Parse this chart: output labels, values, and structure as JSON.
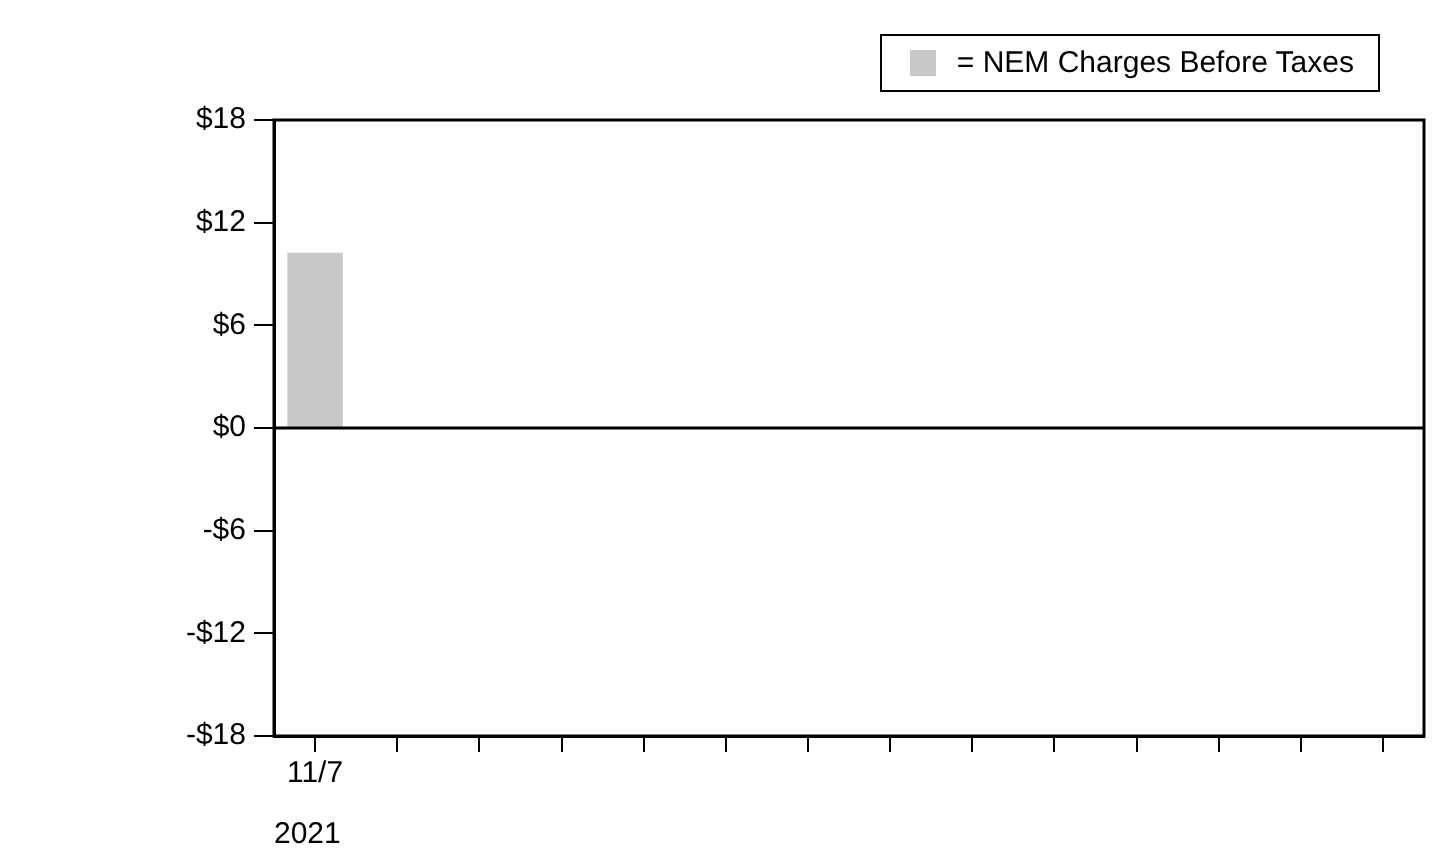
{
  "chart_data": {
    "type": "bar",
    "categories": [
      "11/7",
      null,
      null,
      null,
      null,
      null,
      null,
      null,
      null,
      null,
      null,
      null,
      null,
      null
    ],
    "series": [
      {
        "name": "= NEM Charges Before Taxes",
        "color": "#c8c8c8",
        "values": [
          10.2,
          null,
          null,
          null,
          null,
          null,
          null,
          null,
          null,
          null,
          null,
          null,
          null,
          null
        ]
      }
    ],
    "ylim": [
      -18,
      18
    ],
    "yticks": [
      {
        "value": -18,
        "label": "-$18"
      },
      {
        "value": -12,
        "label": "-$12"
      },
      {
        "value": -6,
        "label": "-$6"
      },
      {
        "value": 0,
        "label": "$0"
      },
      {
        "value": 6,
        "label": "$6"
      },
      {
        "value": 12,
        "label": "$12"
      },
      {
        "value": 18,
        "label": "$18"
      }
    ],
    "ref_lines": [
      {
        "axis": "y",
        "value": 0,
        "color": "#000000"
      }
    ],
    "annotations": [
      "2021"
    ],
    "legend": "top right",
    "grid": false
  }
}
